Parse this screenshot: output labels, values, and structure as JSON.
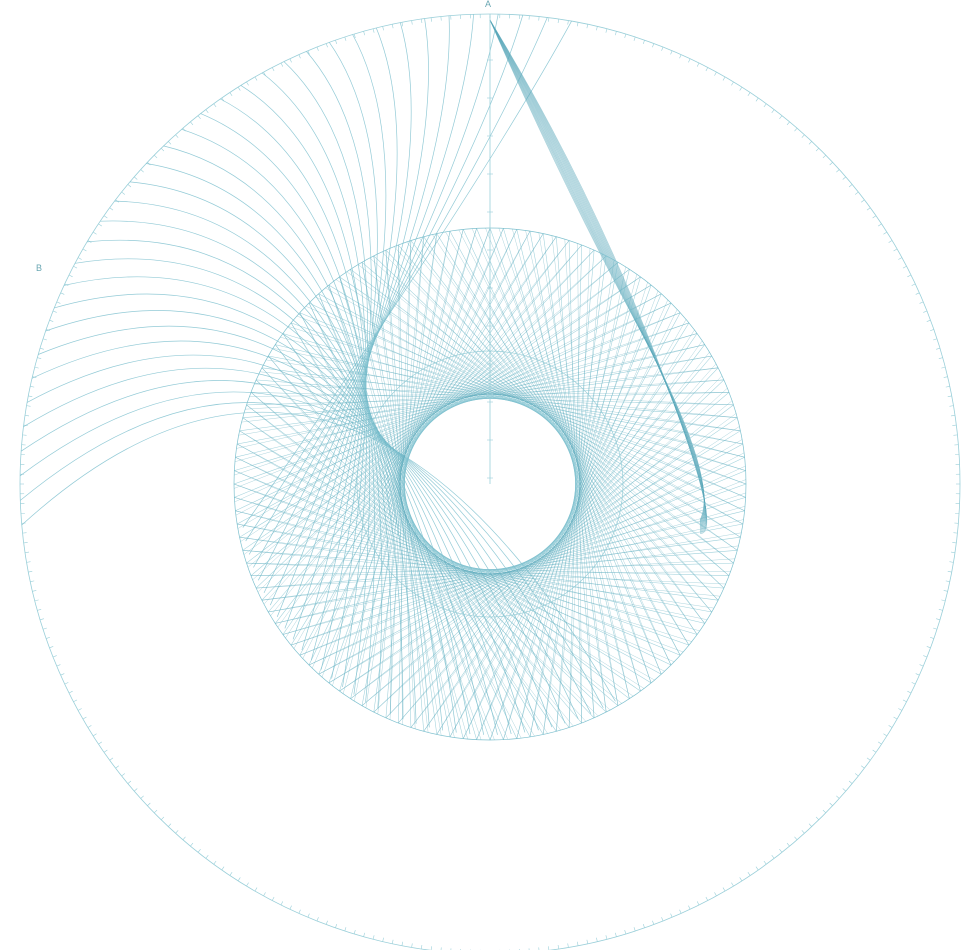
{
  "labels": {
    "a": "A",
    "b": "B"
  },
  "colors": {
    "background": "#ffffff",
    "line": "#7fc1cf",
    "line_dark": "#5aa8ba",
    "ticks": "#9acfd9",
    "text": "#6aa7b3"
  }
}
